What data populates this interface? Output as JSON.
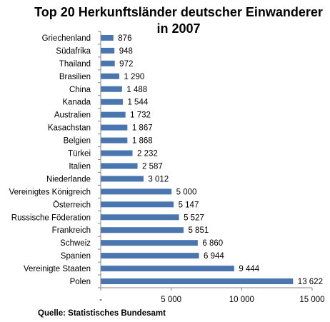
{
  "chart_data": {
    "type": "bar",
    "orientation": "horizontal",
    "title_lines": [
      "Top 20 Herkunftsländer deutscher Einwanderer",
      "in 2007"
    ],
    "categories": [
      "Griechenland",
      "Südafrika",
      "Thailand",
      "Brasilien",
      "China",
      "Kanada",
      "Australien",
      "Kasachstan",
      "Belgien",
      "Türkei",
      "Italien",
      "Niederlande",
      "Vereinigtes Königreich",
      "Österreich",
      "Russische Föderation",
      "Frankreich",
      "Schweiz",
      "Spanien",
      "Vereinigte Staaten",
      "Polen"
    ],
    "values": [
      876,
      948,
      972,
      1290,
      1488,
      1544,
      1732,
      1867,
      1868,
      2232,
      2587,
      3012,
      5000,
      5147,
      5527,
      5851,
      6860,
      6944,
      9444,
      13622
    ],
    "value_labels": [
      "876",
      "948",
      "972",
      "1 290",
      "1 488",
      "1 544",
      "1 732",
      "1 867",
      "1 868",
      "2 232",
      "2 587",
      "3 012",
      "5 000",
      "5 147",
      "5 527",
      "5 851",
      "6 860",
      "6 944",
      "9 444",
      "13 622"
    ],
    "x_ticks": [
      0,
      5000,
      10000,
      15000
    ],
    "x_tick_labels": [
      "-",
      "5 000",
      "10 000",
      "15 000"
    ],
    "xlim": [
      0,
      15000
    ],
    "xlabel": "",
    "ylabel": "",
    "grid": false,
    "legend": "none",
    "bar_color": "#4a76b0",
    "source": "Quelle: Statistisches  Bundesamt"
  }
}
